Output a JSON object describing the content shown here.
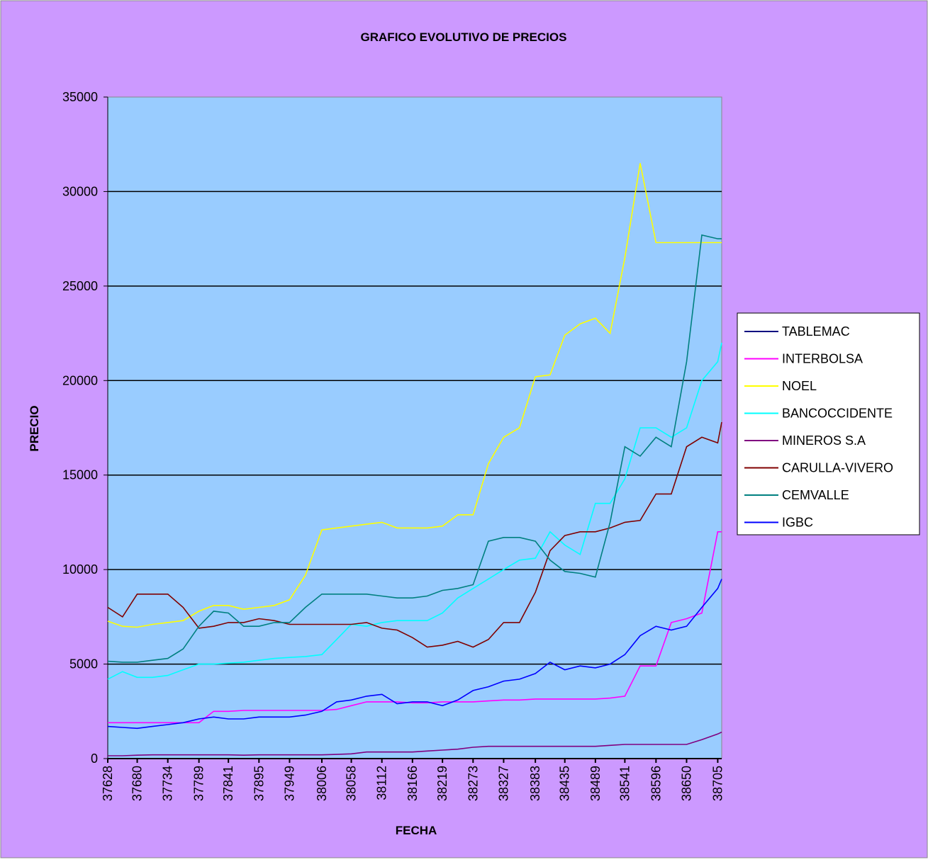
{
  "chart_data": {
    "type": "line",
    "title": "GRAFICO EVOLUTIVO DE PRECIOS",
    "x_label": "FECHA",
    "y_label": "PRECIO",
    "x": [
      37628,
      37654,
      37680,
      37707,
      37734,
      37761,
      37789,
      37815,
      37841,
      37868,
      37895,
      37922,
      37949,
      37977,
      38006,
      38032,
      38058,
      38085,
      38112,
      38139,
      38166,
      38192,
      38219,
      38246,
      38273,
      38300,
      38327,
      38355,
      38383,
      38409,
      38435,
      38462,
      38489,
      38515,
      38541,
      38568,
      38596,
      38623,
      38650,
      38677,
      38705,
      38712
    ],
    "xlim": [
      37628,
      38712
    ],
    "xticks": [
      37628,
      37680,
      37734,
      37789,
      37841,
      37895,
      37949,
      38006,
      38058,
      38112,
      38166,
      38219,
      38273,
      38327,
      38383,
      38435,
      38489,
      38541,
      38596,
      38650,
      38705
    ],
    "ylim": [
      0,
      35000
    ],
    "yticks": [
      0,
      5000,
      10000,
      15000,
      20000,
      25000,
      30000,
      35000
    ],
    "grid": true,
    "legend": "right",
    "series": [
      {
        "name": "TABLEMAC",
        "color": "#000080",
        "values": [
          null,
          null,
          null,
          null,
          null,
          null,
          null,
          null,
          null,
          null,
          null,
          null,
          null,
          null,
          null,
          null,
          null,
          null,
          null,
          null,
          null,
          null,
          null,
          null,
          null,
          null,
          null,
          null,
          null,
          null,
          null,
          null,
          null,
          null,
          null,
          null,
          null,
          null,
          null,
          null,
          null,
          null
        ]
      },
      {
        "name": "INTERBOLSA",
        "color": "#ff00ff",
        "values": [
          1900,
          1900,
          1900,
          1900,
          1900,
          1900,
          1900,
          2500,
          2500,
          2550,
          2550,
          2550,
          2550,
          2550,
          2550,
          2600,
          2800,
          3000,
          3000,
          3000,
          2950,
          2950,
          3000,
          3000,
          3000,
          3050,
          3100,
          3100,
          3150,
          3150,
          3150,
          3150,
          3150,
          3200,
          3300,
          4900,
          4900,
          7200,
          7400,
          7700,
          12000,
          12000
        ]
      },
      {
        "name": "NOEL",
        "color": "#ffff00",
        "values": [
          7270,
          7000,
          6950,
          7100,
          7200,
          7300,
          7800,
          8100,
          8100,
          7900,
          8000,
          8100,
          8400,
          9700,
          12100,
          12200,
          12300,
          12400,
          12500,
          12200,
          12200,
          12200,
          12300,
          12900,
          12900,
          15600,
          17000,
          17500,
          20200,
          20300,
          22400,
          23000,
          23300,
          22500,
          26500,
          31500,
          27300,
          27300,
          27300,
          27300,
          27300,
          27300
        ]
      },
      {
        "name": "BANCOCCIDENTE",
        "color": "#00ffff",
        "values": [
          4200,
          4600,
          4300,
          4300,
          4400,
          4700,
          5000,
          5000,
          5050,
          5100,
          5200,
          5300,
          5350,
          5400,
          5500,
          6300,
          7100,
          7000,
          7200,
          7300,
          7300,
          7300,
          7700,
          8500,
          9000,
          9500,
          10000,
          10500,
          10600,
          12000,
          11300,
          10800,
          13500,
          13500,
          14800,
          17500,
          17500,
          17000,
          17500,
          20000,
          21000,
          22000
        ]
      },
      {
        "name": "MINEROS S.A",
        "color": "#800080",
        "values": [
          150,
          150,
          180,
          200,
          200,
          200,
          200,
          200,
          200,
          180,
          200,
          200,
          200,
          200,
          200,
          220,
          250,
          350,
          350,
          350,
          350,
          400,
          450,
          500,
          600,
          650,
          650,
          650,
          650,
          650,
          650,
          650,
          650,
          700,
          750,
          750,
          750,
          750,
          750,
          1000,
          1300,
          1400
        ]
      },
      {
        "name": "CARULLA-VIVERO",
        "color": "#800000",
        "values": [
          8000,
          7500,
          8700,
          8700,
          8700,
          8000,
          6900,
          7000,
          7200,
          7200,
          7400,
          7300,
          7100,
          7100,
          7100,
          7100,
          7100,
          7200,
          6900,
          6800,
          6400,
          5900,
          6000,
          6200,
          5900,
          6300,
          7200,
          7200,
          8800,
          11000,
          11800,
          12000,
          12000,
          12200,
          12500,
          12600,
          14000,
          14000,
          16500,
          17000,
          16700,
          17800
        ]
      },
      {
        "name": "CEMVALLE",
        "color": "#008080",
        "values": [
          5150,
          5100,
          5100,
          5200,
          5300,
          5800,
          7000,
          7800,
          7700,
          7000,
          7000,
          7200,
          7200,
          8000,
          8700,
          8700,
          8700,
          8700,
          8600,
          8500,
          8500,
          8600,
          8900,
          9000,
          9200,
          11500,
          11700,
          11700,
          11500,
          10500,
          9900,
          9800,
          9600,
          12500,
          16500,
          16000,
          17000,
          16500,
          21000,
          27700,
          27500,
          27500
        ]
      },
      {
        "name": "IGBC",
        "color": "#0000ff",
        "values": [
          1700,
          1650,
          1600,
          1700,
          1800,
          1900,
          2100,
          2200,
          2100,
          2100,
          2200,
          2200,
          2200,
          2300,
          2500,
          3000,
          3100,
          3300,
          3400,
          2900,
          3000,
          3000,
          2800,
          3100,
          3600,
          3800,
          4100,
          4200,
          4500,
          5100,
          4700,
          4900,
          4800,
          5000,
          5500,
          6500,
          7000,
          6800,
          7000,
          8000,
          9000,
          9500
        ]
      }
    ]
  }
}
